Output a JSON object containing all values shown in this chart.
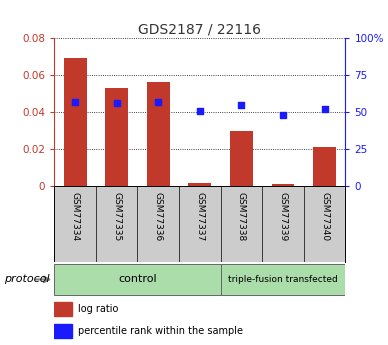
{
  "title": "GDS2187 / 22116",
  "samples": [
    "GSM77334",
    "GSM77335",
    "GSM77336",
    "GSM77337",
    "GSM77338",
    "GSM77339",
    "GSM77340"
  ],
  "log_ratio": [
    0.069,
    0.053,
    0.056,
    0.002,
    0.03,
    0.001,
    0.021
  ],
  "percentile_rank": [
    57,
    56,
    57,
    51,
    55,
    48,
    52
  ],
  "bar_color": "#c0392b",
  "dot_color": "#1a1aff",
  "left_ylim": [
    0,
    0.08
  ],
  "right_ylim": [
    0,
    100
  ],
  "left_yticks": [
    0,
    0.02,
    0.04,
    0.06,
    0.08
  ],
  "left_yticklabels": [
    "0",
    "0.02",
    "0.04",
    "0.06",
    "0.08"
  ],
  "right_yticks": [
    0,
    25,
    50,
    75,
    100
  ],
  "right_yticklabels": [
    "0",
    "25",
    "50",
    "75",
    "100%"
  ],
  "groups": [
    {
      "label": "control",
      "start": 0,
      "end": 3
    },
    {
      "label": "triple-fusion transfected",
      "start": 4,
      "end": 6
    }
  ],
  "protocol_label": "protocol",
  "legend_items": [
    {
      "label": "log ratio",
      "color": "#c0392b"
    },
    {
      "label": "percentile rank within the sample",
      "color": "#1a1aff"
    }
  ],
  "bar_width": 0.55,
  "background_color": "#ffffff",
  "plot_bg_color": "#ffffff",
  "sample_label_bg": "#cccccc",
  "group_bg": "#90ee90",
  "title_fontsize": 10,
  "tick_fontsize": 7.5,
  "label_fontsize": 6.5,
  "legend_fontsize": 7
}
